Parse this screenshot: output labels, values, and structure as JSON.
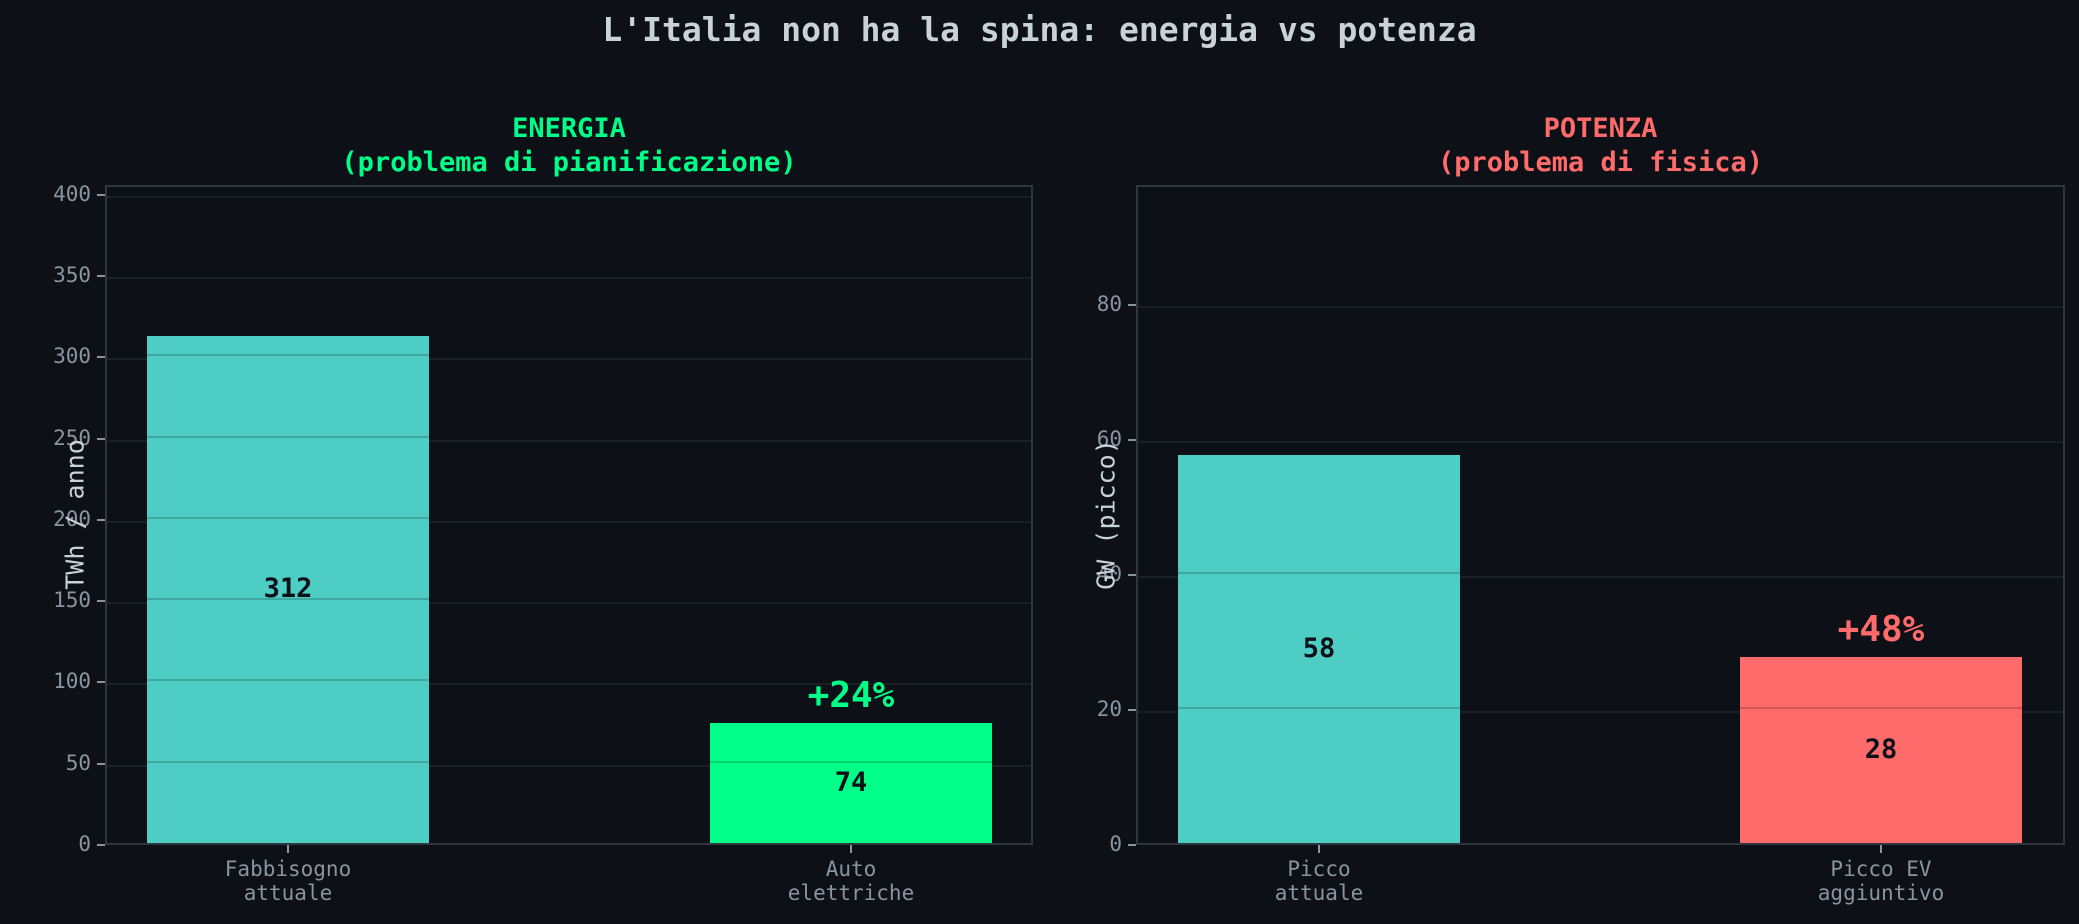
{
  "title": "L'Italia non ha la spina: energia vs potenza",
  "colors": {
    "background": "#0d1117",
    "teal": "#4ecdc4",
    "green": "#00ff88",
    "red": "#ff6b6b",
    "tick": "#8b949e",
    "text": "#c9d1d9"
  },
  "chart_data": [
    {
      "type": "bar",
      "title": "ENERGIA\n(problema di pianificazione)",
      "title_line1": "ENERGIA",
      "title_line2": "(problema di pianificazione)",
      "title_color": "#00ff88",
      "categories": [
        "Fabbisogno\nattuale",
        "Auto\nelettriche"
      ],
      "category_lines": [
        [
          "Fabbisogno",
          "attuale"
        ],
        [
          "Auto",
          "elettriche"
        ]
      ],
      "values": [
        312,
        74
      ],
      "value_labels": [
        "312",
        "74"
      ],
      "bar_colors": [
        "#4ecdc4",
        "#00ff88"
      ],
      "annotation": {
        "text": "+24%",
        "bar_index": 1,
        "color": "#00ff88"
      },
      "xlabel": "",
      "ylabel": "TWh / anno",
      "ylim": [
        0,
        406
      ],
      "yticks": [
        0,
        50,
        100,
        150,
        200,
        250,
        300,
        350,
        400
      ],
      "grid": true
    },
    {
      "type": "bar",
      "title": "POTENZA\n(problema di fisica)",
      "title_line1": "POTENZA",
      "title_line2": "(problema di fisica)",
      "title_color": "#ff6b6b",
      "categories": [
        "Picco\nattuale",
        "Picco EV\naggiuntivo"
      ],
      "category_lines": [
        [
          "Picco",
          "attuale"
        ],
        [
          "Picco EV",
          "aggiuntivo"
        ]
      ],
      "values": [
        57.5,
        27.6
      ],
      "value_labels": [
        "58",
        "28"
      ],
      "bar_colors": [
        "#4ecdc4",
        "#ff6b6b"
      ],
      "annotation": {
        "text": "+48%",
        "bar_index": 1,
        "color": "#ff6b6b"
      },
      "xlabel": "",
      "ylabel": "GW (picco)",
      "ylim": [
        0,
        97.8
      ],
      "yticks": [
        0,
        20,
        40,
        60,
        80
      ],
      "grid": true
    }
  ]
}
